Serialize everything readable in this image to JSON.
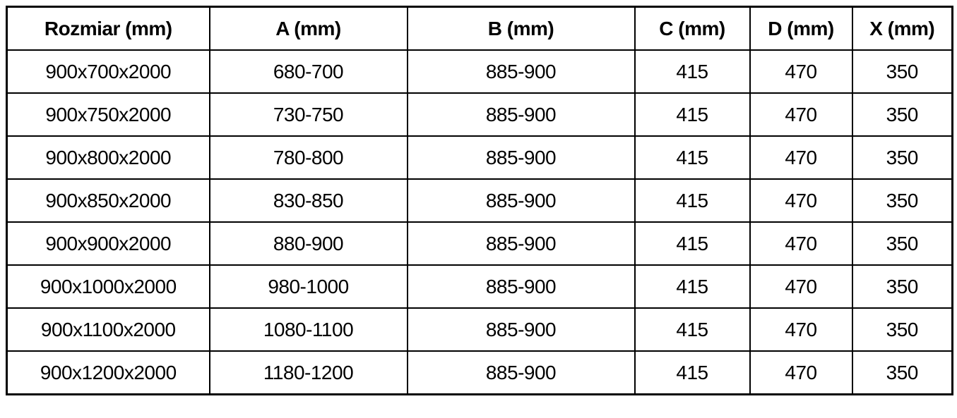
{
  "colors": {
    "background": "#ffffff",
    "border": "#000000",
    "text": "#000000"
  },
  "chart_data": {
    "type": "table",
    "columns": [
      "Rozmiar (mm)",
      "A (mm)",
      "B (mm)",
      "C (mm)",
      "D (mm)",
      "X (mm)"
    ],
    "rows": [
      [
        "900x700x2000",
        "680-700",
        "885-900",
        "415",
        "470",
        "350"
      ],
      [
        "900x750x2000",
        "730-750",
        "885-900",
        "415",
        "470",
        "350"
      ],
      [
        "900x800x2000",
        "780-800",
        "885-900",
        "415",
        "470",
        "350"
      ],
      [
        "900x850x2000",
        "830-850",
        "885-900",
        "415",
        "470",
        "350"
      ],
      [
        "900x900x2000",
        "880-900",
        "885-900",
        "415",
        "470",
        "350"
      ],
      [
        "900x1000x2000",
        "980-1000",
        "885-900",
        "415",
        "470",
        "350"
      ],
      [
        "900x1100x2000",
        "1080-1100",
        "885-900",
        "415",
        "470",
        "350"
      ],
      [
        "900x1200x2000",
        "1180-1200",
        "885-900",
        "415",
        "470",
        "350"
      ]
    ]
  }
}
